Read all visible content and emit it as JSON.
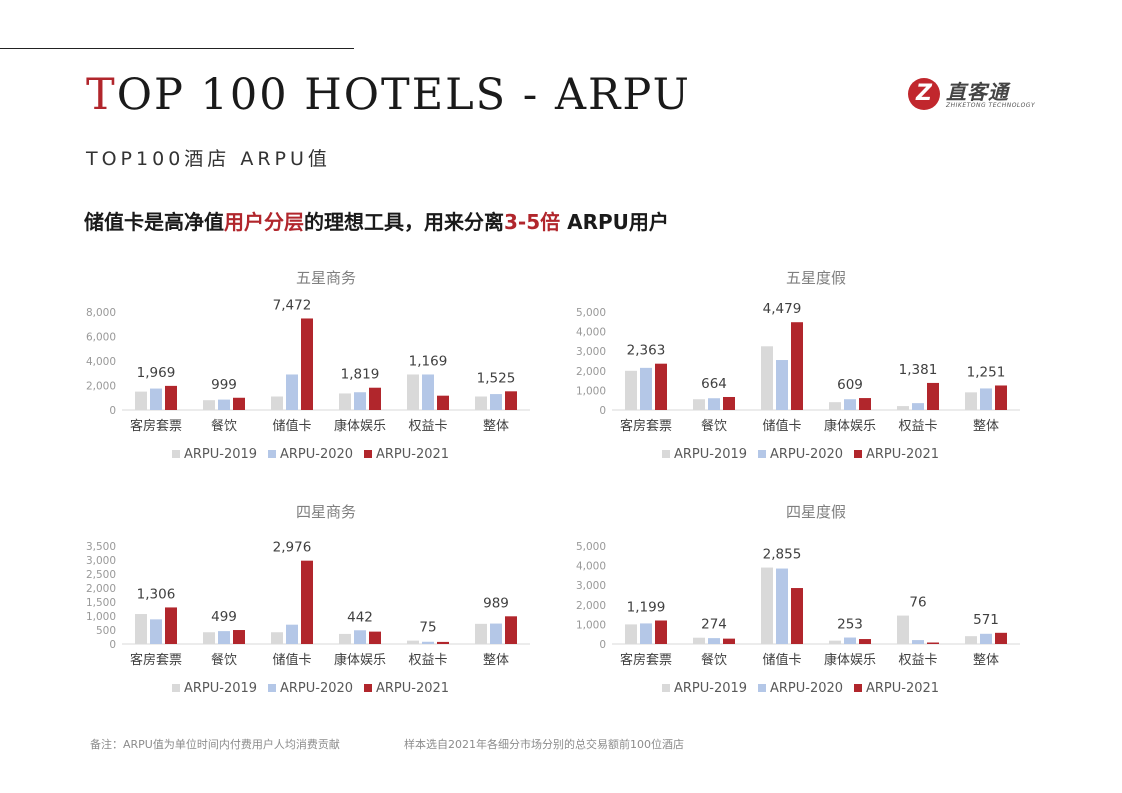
{
  "header": {
    "title_first_letter": "T",
    "title_rest": "OP 100 HOTELS - ARPU",
    "subtitle": "TOP100酒店 ARPU值",
    "headline_parts": [
      "储值卡是高净值",
      "用户分层",
      "的理想工具，用来分离",
      "3-5倍",
      " ARPU用户"
    ],
    "logo": {
      "mark": "Z",
      "name": "直客通",
      "en": "ZHIKETONG TECHNOLOGY"
    }
  },
  "colors": {
    "ARPU-2019": "#d9d9d9",
    "ARPU-2020": "#b4c7e7",
    "ARPU-2021": "#b1262c",
    "accent": "#b1262c"
  },
  "chart_data": [
    {
      "type": "bar",
      "title": "五星商务",
      "categories": [
        "客房套票",
        "餐饮",
        "储值卡",
        "康体娱乐",
        "权益卡",
        "整体"
      ],
      "ylim": [
        0,
        8000
      ],
      "yticks": [
        "0",
        "2,000",
        "4,000",
        "6,000",
        "8,000"
      ],
      "series": [
        {
          "name": "ARPU-2019",
          "values": [
            1500,
            800,
            1100,
            1350,
            2900,
            1100
          ]
        },
        {
          "name": "ARPU-2020",
          "values": [
            1750,
            850,
            2900,
            1450,
            2900,
            1300
          ]
        },
        {
          "name": "ARPU-2021",
          "values": [
            1969,
            999,
            7472,
            1819,
            1169,
            1525
          ]
        }
      ],
      "data_labels": [
        "1,969",
        "999",
        "7,472",
        "1,819",
        "1,169",
        "1,525"
      ]
    },
    {
      "type": "bar",
      "title": "五星度假",
      "categories": [
        "客房套票",
        "餐饮",
        "储值卡",
        "康体娱乐",
        "权益卡",
        "整体"
      ],
      "ylim": [
        0,
        5000
      ],
      "yticks": [
        "0",
        "1,000",
        "2,000",
        "3,000",
        "4,000",
        "5,000"
      ],
      "series": [
        {
          "name": "ARPU-2019",
          "values": [
            2000,
            550,
            3250,
            400,
            200,
            900
          ]
        },
        {
          "name": "ARPU-2020",
          "values": [
            2150,
            600,
            2550,
            550,
            350,
            1100
          ]
        },
        {
          "name": "ARPU-2021",
          "values": [
            2363,
            664,
            4479,
            609,
            1381,
            1251
          ]
        }
      ],
      "data_labels": [
        "2,363",
        "664",
        "4,479",
        "609",
        "1,381",
        "1,251"
      ]
    },
    {
      "type": "bar",
      "title": "四星商务",
      "categories": [
        "客房套票",
        "餐饮",
        "储值卡",
        "康体娱乐",
        "权益卡",
        "整体"
      ],
      "ylim": [
        0,
        3500
      ],
      "yticks": [
        "0",
        "500",
        "1,000",
        "1,500",
        "2,000",
        "2,500",
        "3,000",
        "3,500"
      ],
      "series": [
        {
          "name": "ARPU-2019",
          "values": [
            1070,
            420,
            420,
            360,
            120,
            720
          ]
        },
        {
          "name": "ARPU-2020",
          "values": [
            880,
            460,
            690,
            490,
            80,
            730
          ]
        },
        {
          "name": "ARPU-2021",
          "values": [
            1306,
            499,
            2976,
            442,
            75,
            989
          ]
        }
      ],
      "data_labels": [
        "1,306",
        "499",
        "2,976",
        "442",
        "75",
        "989"
      ]
    },
    {
      "type": "bar",
      "title": "四星度假",
      "categories": [
        "客房套票",
        "餐饮",
        "储值卡",
        "康体娱乐",
        "权益卡",
        "整体"
      ],
      "ylim": [
        0,
        5000
      ],
      "yticks": [
        "0",
        "1,000",
        "2,000",
        "3,000",
        "4,000",
        "5,000"
      ],
      "series": [
        {
          "name": "ARPU-2019",
          "values": [
            1000,
            320,
            3900,
            170,
            1450,
            400
          ]
        },
        {
          "name": "ARPU-2020",
          "values": [
            1050,
            300,
            3850,
            330,
            200,
            520
          ]
        },
        {
          "name": "ARPU-2021",
          "values": [
            1199,
            274,
            2855,
            253,
            76,
            571
          ]
        }
      ],
      "data_labels": [
        "1,199",
        "274",
        "2,855",
        "253",
        "76",
        "571"
      ]
    }
  ],
  "footnotes": {
    "note": "备注：ARPU值为单位时间内付费用户人均消费贡献",
    "sample": "样本选自2021年各细分市场分别的总交易额前100位酒店"
  }
}
